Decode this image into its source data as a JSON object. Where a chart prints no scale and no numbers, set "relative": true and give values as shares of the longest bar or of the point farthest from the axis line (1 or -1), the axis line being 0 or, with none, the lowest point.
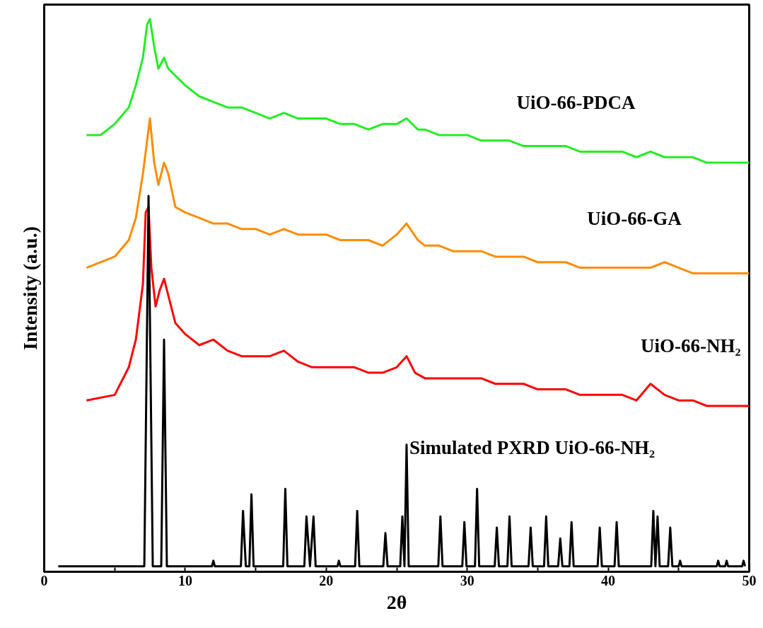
{
  "chart_data": {
    "type": "line",
    "relative": true,
    "xlabel": "2θ",
    "ylabel": "Intensity (a.u.)",
    "xlim": [
      0,
      50
    ],
    "xticks": [
      0,
      {
        "value": 5,
        "label": null
      },
      10,
      {
        "value": 15,
        "label": null
      },
      20,
      {
        "value": 25,
        "label": null
      },
      30,
      {
        "value": 35,
        "label": null
      },
      40,
      {
        "value": 45,
        "label": null
      },
      50
    ],
    "tick_labels": "x",
    "grid": false,
    "marker": "none",
    "line_style": "solid",
    "series": [
      {
        "name": "UiO-66-PDCA",
        "color": "#22ee22",
        "x": [
          3,
          4,
          5,
          6,
          6.5,
          7,
          7.3,
          7.5,
          7.8,
          8.1,
          8.5,
          8.8,
          9.2,
          10,
          11,
          12,
          13,
          14,
          15,
          16,
          17,
          18,
          19,
          20,
          21,
          22,
          23,
          24,
          25,
          25.7,
          26.5,
          27,
          28,
          29,
          30,
          31,
          32,
          33,
          34,
          35,
          36,
          37,
          38,
          39,
          40,
          41,
          42,
          43,
          44,
          45,
          46,
          47,
          48,
          49,
          50
        ],
        "values": [
          0.79,
          0.79,
          0.81,
          0.84,
          0.88,
          0.93,
          0.99,
          1.0,
          0.95,
          0.91,
          0.93,
          0.91,
          0.9,
          0.88,
          0.86,
          0.85,
          0.84,
          0.84,
          0.83,
          0.82,
          0.83,
          0.82,
          0.82,
          0.82,
          0.81,
          0.81,
          0.8,
          0.81,
          0.81,
          0.82,
          0.8,
          0.8,
          0.79,
          0.79,
          0.79,
          0.78,
          0.78,
          0.78,
          0.77,
          0.77,
          0.77,
          0.77,
          0.76,
          0.76,
          0.76,
          0.76,
          0.75,
          0.76,
          0.75,
          0.75,
          0.75,
          0.74,
          0.74,
          0.74,
          0.74
        ]
      },
      {
        "name": "UiO-66-GA",
        "color": "#ff8c00",
        "x": [
          3,
          5,
          6,
          6.5,
          7,
          7.3,
          7.5,
          7.8,
          8.1,
          8.5,
          8.8,
          9.3,
          10,
          11,
          12,
          13,
          14,
          15,
          16,
          17,
          18,
          19,
          20,
          21,
          22,
          23,
          24,
          25,
          25.7,
          26.5,
          27,
          28,
          29,
          30,
          31,
          32,
          33,
          34,
          35,
          36,
          37,
          38,
          39,
          40,
          41,
          42,
          43,
          44,
          45,
          46,
          47,
          48,
          49,
          50
        ],
        "values": [
          0.55,
          0.57,
          0.6,
          0.64,
          0.72,
          0.78,
          0.82,
          0.74,
          0.7,
          0.74,
          0.72,
          0.66,
          0.65,
          0.64,
          0.63,
          0.63,
          0.62,
          0.62,
          0.61,
          0.62,
          0.61,
          0.61,
          0.61,
          0.6,
          0.6,
          0.6,
          0.59,
          0.61,
          0.63,
          0.6,
          0.59,
          0.59,
          0.58,
          0.58,
          0.58,
          0.57,
          0.57,
          0.57,
          0.56,
          0.56,
          0.56,
          0.55,
          0.55,
          0.55,
          0.55,
          0.55,
          0.55,
          0.56,
          0.55,
          0.54,
          0.54,
          0.54,
          0.54,
          0.54
        ]
      },
      {
        "name": "UiO-66-NH₂",
        "color": "#ff0000",
        "x": [
          3,
          5,
          6,
          6.5,
          7,
          7.2,
          7.4,
          7.6,
          7.9,
          8.2,
          8.5,
          8.8,
          9.3,
          10,
          11,
          12,
          13,
          14,
          15,
          16,
          17,
          18,
          19,
          20,
          21,
          22,
          23,
          24,
          25,
          25.7,
          26.3,
          27,
          28,
          29,
          30,
          31,
          32,
          33,
          34,
          35,
          36,
          37,
          38,
          39,
          40,
          41,
          42,
          43,
          44,
          45,
          46,
          47,
          48,
          49,
          50
        ],
        "values": [
          0.31,
          0.32,
          0.37,
          0.42,
          0.52,
          0.65,
          0.66,
          0.55,
          0.48,
          0.51,
          0.53,
          0.5,
          0.45,
          0.43,
          0.41,
          0.42,
          0.4,
          0.39,
          0.39,
          0.39,
          0.4,
          0.38,
          0.37,
          0.37,
          0.37,
          0.37,
          0.36,
          0.36,
          0.37,
          0.39,
          0.36,
          0.35,
          0.35,
          0.35,
          0.35,
          0.35,
          0.34,
          0.34,
          0.34,
          0.33,
          0.33,
          0.33,
          0.32,
          0.32,
          0.32,
          0.32,
          0.31,
          0.34,
          0.32,
          0.31,
          0.31,
          0.3,
          0.3,
          0.3,
          0.3
        ]
      },
      {
        "name": "Simulated PXRD UiO-66-NH₂",
        "color": "#000000",
        "x": [
          1,
          7.1,
          7.4,
          7.7,
          8.3,
          8.5,
          8.7,
          11.9,
          12.0,
          12.1,
          13.95,
          14.1,
          14.3,
          14.55,
          14.7,
          14.85,
          16.95,
          17.1,
          17.25,
          18.45,
          18.6,
          18.85,
          19.1,
          19.25,
          20.8,
          20.9,
          21.0,
          22.05,
          22.2,
          22.35,
          24.05,
          24.2,
          24.35,
          25.25,
          25.4,
          25.55,
          25.7,
          25.85,
          27.95,
          28.1,
          28.25,
          29.65,
          29.8,
          29.95,
          30.55,
          30.7,
          30.85,
          31.95,
          32.1,
          32.25,
          32.85,
          33.0,
          33.15,
          34.35,
          34.5,
          34.65,
          35.45,
          35.6,
          35.75,
          36.45,
          36.6,
          36.75,
          37.25,
          37.4,
          37.55,
          39.25,
          39.4,
          39.55,
          40.45,
          40.6,
          40.75,
          43.05,
          43.2,
          43.35,
          43.5,
          43.65,
          44.25,
          44.4,
          44.55,
          45.0,
          45.1,
          45.2,
          47.7,
          47.8,
          47.9,
          48.3,
          48.4,
          48.5,
          49.5,
          49.6,
          49.7
        ],
        "values": [
          0.01,
          0.01,
          0.68,
          0.01,
          0.01,
          0.42,
          0.01,
          0.01,
          0.02,
          0.01,
          0.01,
          0.11,
          0.01,
          0.01,
          0.14,
          0.01,
          0.01,
          0.15,
          0.01,
          0.01,
          0.1,
          0.01,
          0.1,
          0.01,
          0.01,
          0.02,
          0.01,
          0.01,
          0.11,
          0.01,
          0.01,
          0.07,
          0.01,
          0.01,
          0.1,
          0.01,
          0.23,
          0.01,
          0.01,
          0.1,
          0.01,
          0.01,
          0.09,
          0.01,
          0.01,
          0.15,
          0.01,
          0.01,
          0.08,
          0.01,
          0.01,
          0.1,
          0.01,
          0.01,
          0.08,
          0.01,
          0.01,
          0.1,
          0.01,
          0.01,
          0.06,
          0.01,
          0.01,
          0.09,
          0.01,
          0.01,
          0.08,
          0.01,
          0.01,
          0.09,
          0.01,
          0.01,
          0.11,
          0.01,
          0.1,
          0.01,
          0.01,
          0.08,
          0.01,
          0.01,
          0.02,
          0.01,
          0.01,
          0.02,
          0.01,
          0.01,
          0.02,
          0.01,
          0.01,
          0.02,
          0.01
        ]
      }
    ]
  }
}
